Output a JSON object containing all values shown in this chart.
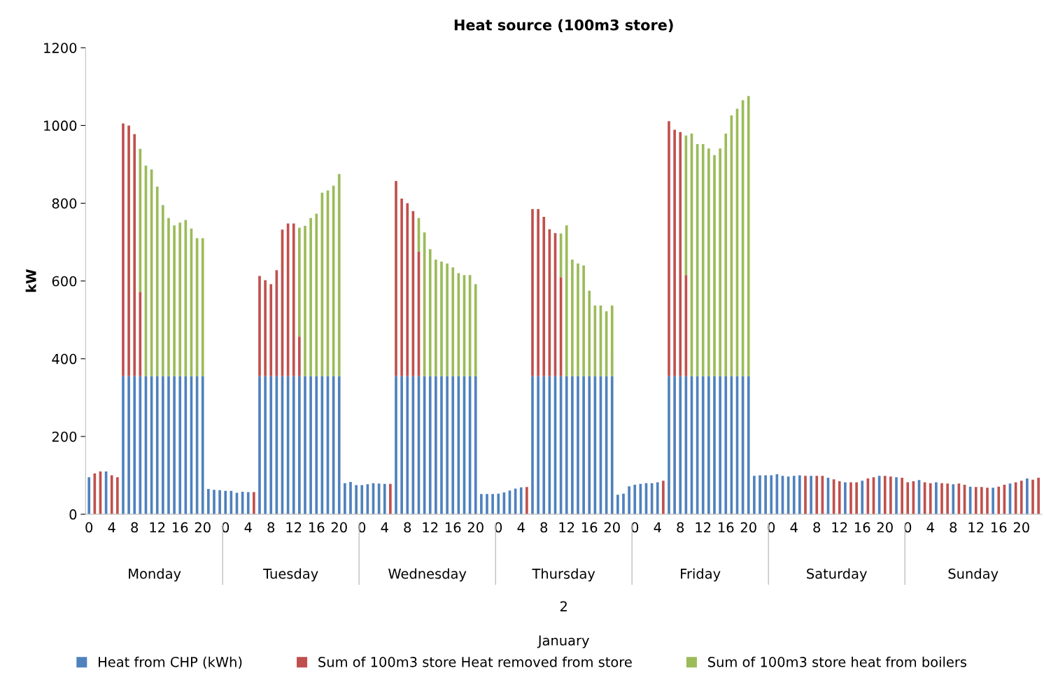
{
  "chart_data": {
    "type": "bar",
    "title": "Heat source (100m3 store)",
    "ylabel": "kW",
    "stacked": true,
    "categories": [
      "0",
      null,
      null,
      null,
      "4",
      null,
      null,
      null,
      "8",
      null,
      null,
      null,
      "12",
      null,
      null,
      null,
      "16",
      null,
      null,
      null,
      "20",
      null,
      null,
      null,
      "0",
      null,
      null,
      null,
      "4",
      null,
      null,
      null,
      "8",
      null,
      null,
      null,
      "12",
      null,
      null,
      null,
      "16",
      null,
      null,
      null,
      "20",
      null,
      null,
      null,
      "0",
      null,
      null,
      null,
      "4",
      null,
      null,
      null,
      "8",
      null,
      null,
      null,
      "12",
      null,
      null,
      null,
      "16",
      null,
      null,
      null,
      "20",
      null,
      null,
      null,
      "0",
      null,
      null,
      null,
      "4",
      null,
      null,
      null,
      "8",
      null,
      null,
      null,
      "12",
      null,
      null,
      null,
      "16",
      null,
      null,
      null,
      "20",
      null,
      null,
      null,
      "0",
      null,
      null,
      null,
      "4",
      null,
      null,
      null,
      "8",
      null,
      null,
      null,
      "12",
      null,
      null,
      null,
      "16",
      null,
      null,
      null,
      "20",
      null,
      null,
      null,
      "0",
      null,
      null,
      null,
      "4",
      null,
      null,
      null,
      "8",
      null,
      null,
      null,
      "12",
      null,
      null,
      null,
      "16",
      null,
      null,
      null,
      "20",
      null,
      null,
      null,
      "0",
      null,
      null,
      null,
      "4",
      null,
      null,
      null,
      "8",
      null,
      null,
      null,
      "12",
      null,
      null,
      null,
      "16",
      null,
      null,
      null,
      "20",
      null,
      null,
      null
    ],
    "series": [
      {
        "name": "Heat from CHP (kWh)",
        "color": "#4f81bd",
        "values": [
          95,
          0,
          0,
          110,
          0,
          0,
          355,
          355,
          355,
          355,
          355,
          355,
          355,
          355,
          355,
          355,
          355,
          355,
          355,
          355,
          355,
          65,
          63,
          62,
          60,
          60,
          55,
          58,
          57,
          0,
          355,
          355,
          355,
          355,
          355,
          355,
          355,
          355,
          355,
          355,
          355,
          355,
          355,
          355,
          355,
          80,
          83,
          75,
          75,
          77,
          80,
          79,
          78,
          0,
          355,
          355,
          355,
          355,
          355,
          355,
          355,
          355,
          355,
          355,
          355,
          355,
          355,
          355,
          355,
          52,
          52,
          52,
          53,
          56,
          61,
          66,
          69,
          0,
          355,
          355,
          355,
          355,
          355,
          355,
          355,
          355,
          355,
          355,
          355,
          355,
          355,
          355,
          355,
          50,
          53,
          72,
          76,
          78,
          80,
          80,
          82,
          0,
          355,
          355,
          355,
          355,
          355,
          355,
          355,
          355,
          355,
          355,
          355,
          355,
          355,
          355,
          355,
          99,
          100,
          100,
          100,
          103,
          99,
          97,
          99,
          100,
          0,
          99,
          0,
          0,
          94,
          0,
          0,
          82,
          0,
          0,
          86,
          0,
          0,
          99,
          0,
          0,
          95,
          0,
          0,
          0,
          88,
          0,
          0,
          82,
          0,
          0,
          77,
          0,
          0,
          71,
          0,
          0,
          0,
          68,
          0,
          0,
          79,
          0,
          0,
          92,
          0,
          0
        ]
      },
      {
        "name": "Sum of 100m3 store Heat removed from store",
        "color": "#c0504d",
        "values": [
          0,
          105,
          110,
          0,
          100,
          95,
          650,
          645,
          623,
          217,
          0,
          0,
          0,
          0,
          0,
          0,
          0,
          0,
          0,
          0,
          0,
          0,
          0,
          0,
          0,
          0,
          0,
          0,
          0,
          57,
          258,
          247,
          237,
          273,
          377,
          393,
          393,
          102,
          0,
          0,
          0,
          0,
          0,
          0,
          0,
          0,
          0,
          0,
          0,
          0,
          0,
          0,
          0,
          78,
          502,
          457,
          445,
          425,
          320,
          0,
          0,
          0,
          0,
          0,
          0,
          0,
          0,
          0,
          0,
          0,
          0,
          0,
          0,
          0,
          0,
          0,
          0,
          70,
          430,
          430,
          410,
          378,
          368,
          255,
          0,
          0,
          0,
          0,
          0,
          0,
          0,
          0,
          0,
          0,
          0,
          0,
          0,
          0,
          0,
          0,
          0,
          86,
          656,
          634,
          628,
          260,
          0,
          0,
          0,
          0,
          0,
          0,
          0,
          0,
          0,
          0,
          0,
          0,
          0,
          0,
          0,
          0,
          0,
          0,
          0,
          0,
          99,
          0,
          99,
          99,
          0,
          90,
          85,
          0,
          82,
          82,
          0,
          92,
          95,
          0,
          99,
          97,
          0,
          94,
          82,
          85,
          0,
          82,
          80,
          0,
          80,
          79,
          0,
          79,
          76,
          0,
          70,
          70,
          68,
          0,
          71,
          76,
          0,
          82,
          86,
          0,
          89,
          94
        ]
      },
      {
        "name": "Sum of 100m3 store heat from boilers",
        "color": "#9bbb59",
        "values": [
          0,
          0,
          0,
          0,
          0,
          0,
          0,
          0,
          0,
          368,
          542,
          532,
          488,
          440,
          407,
          388,
          395,
          402,
          380,
          355,
          355,
          0,
          0,
          0,
          0,
          0,
          0,
          0,
          0,
          0,
          0,
          0,
          0,
          0,
          0,
          0,
          0,
          280,
          387,
          407,
          418,
          472,
          478,
          490,
          520,
          0,
          0,
          0,
          0,
          0,
          0,
          0,
          0,
          0,
          0,
          0,
          0,
          0,
          87,
          370,
          327,
          300,
          295,
          290,
          280,
          265,
          260,
          260,
          237,
          0,
          0,
          0,
          0,
          0,
          0,
          0,
          0,
          0,
          0,
          0,
          0,
          0,
          0,
          112,
          388,
          300,
          290,
          285,
          220,
          182,
          182,
          167,
          182,
          0,
          0,
          0,
          0,
          0,
          0,
          0,
          0,
          0,
          0,
          0,
          0,
          359,
          624,
          597,
          597,
          586,
          569,
          586,
          624,
          671,
          688,
          710,
          721,
          0,
          0,
          0,
          0,
          0,
          0,
          0,
          0,
          0,
          0,
          0,
          0,
          0,
          0,
          0,
          0,
          0,
          0,
          0,
          0,
          0,
          0,
          0,
          0,
          0,
          0,
          0,
          0,
          0,
          0,
          0,
          0,
          0,
          0,
          0,
          0,
          0,
          0,
          0,
          0,
          0,
          0,
          0,
          0,
          0,
          0,
          0,
          0,
          0,
          0,
          0
        ]
      }
    ],
    "ylim": [
      0,
      1200
    ],
    "yticks": [
      0,
      200,
      400,
      600,
      800,
      1000,
      1200
    ],
    "grid": false,
    "legend": "bottom",
    "annotations": [
      "Monday",
      "Tuesday",
      "Wednesday",
      "Thursday",
      "Friday",
      "Saturday",
      "Sunday",
      "2",
      "January"
    ]
  }
}
